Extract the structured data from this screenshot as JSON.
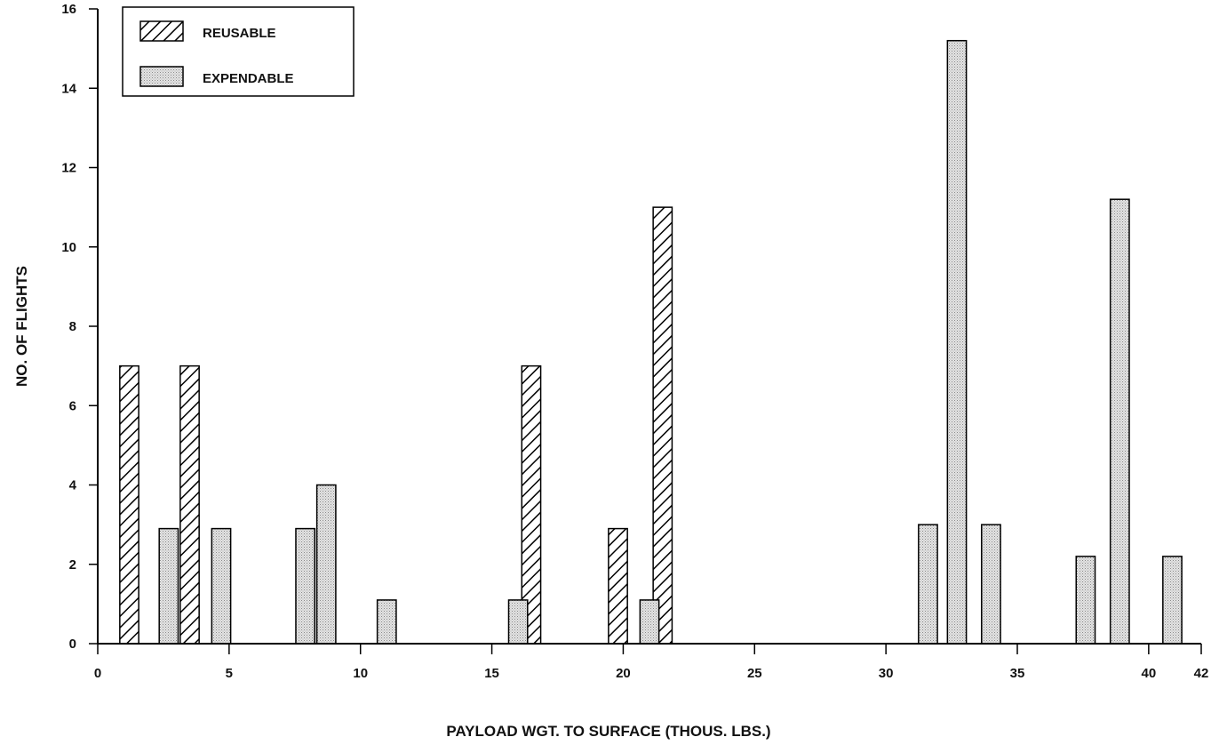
{
  "chart_data": {
    "type": "bar",
    "title": "",
    "xlabel": "PAYLOAD WGT. TO SURFACE (THOUS. LBS.)",
    "ylabel": "NO. OF FLIGHTS",
    "xlim": [
      0,
      42
    ],
    "ylim": [
      0,
      16
    ],
    "x_ticks": [
      "0",
      "5",
      "10",
      "15",
      "20",
      "25",
      "30",
      "35",
      "40",
      "42"
    ],
    "x_tick_values": [
      0,
      5,
      10,
      15,
      20,
      25,
      30,
      35,
      40,
      42
    ],
    "y_ticks": [
      "0",
      "2",
      "4",
      "6",
      "8",
      "10",
      "12",
      "14",
      "16"
    ],
    "y_tick_values": [
      0,
      2,
      4,
      6,
      8,
      10,
      12,
      14,
      16
    ],
    "grid": false,
    "legend_position": "top-left",
    "series": [
      {
        "name": "REUSABLE",
        "pattern": "diagonal-hatch",
        "color": "#000000",
        "points": [
          {
            "x": 1.2,
            "y": 7.0
          },
          {
            "x": 3.5,
            "y": 7.0
          },
          {
            "x": 16.5,
            "y": 7.0
          },
          {
            "x": 19.8,
            "y": 2.9
          },
          {
            "x": 21.5,
            "y": 11.0
          }
        ]
      },
      {
        "name": "EXPENDABLE",
        "pattern": "fine-dots",
        "color": "#bdbdbd",
        "points": [
          {
            "x": 2.7,
            "y": 2.9
          },
          {
            "x": 4.7,
            "y": 2.9
          },
          {
            "x": 7.9,
            "y": 2.9
          },
          {
            "x": 8.7,
            "y": 4.0
          },
          {
            "x": 11.0,
            "y": 1.1
          },
          {
            "x": 16.0,
            "y": 1.1
          },
          {
            "x": 21.0,
            "y": 1.1
          },
          {
            "x": 31.6,
            "y": 3.0
          },
          {
            "x": 32.7,
            "y": 15.2
          },
          {
            "x": 34.0,
            "y": 3.0
          },
          {
            "x": 37.6,
            "y": 2.2
          },
          {
            "x": 38.9,
            "y": 11.2
          },
          {
            "x": 40.9,
            "y": 2.2
          }
        ]
      }
    ]
  }
}
